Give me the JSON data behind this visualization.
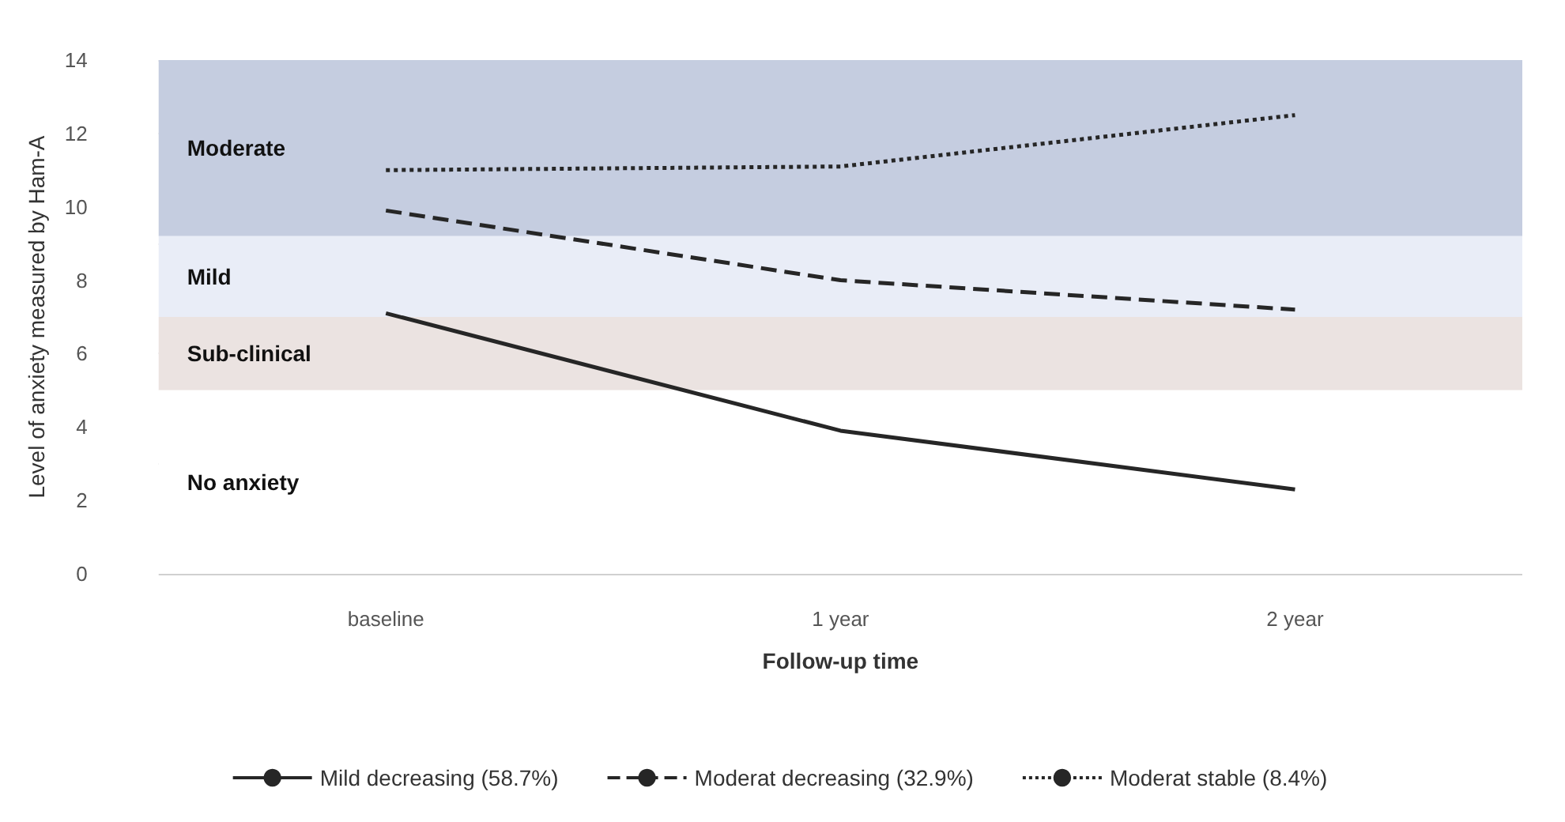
{
  "chart_data": {
    "type": "line",
    "xlabel": "Follow-up time",
    "ylabel": "Level of anxiety measured by Ham-A",
    "categories": [
      "baseline",
      "1 year",
      "2 year"
    ],
    "series": [
      {
        "name": "Mild decreasing (58.7%)",
        "color": "#262626",
        "line_style": "solid",
        "values": [
          7.1,
          3.9,
          2.3
        ]
      },
      {
        "name": "Moderat decreasing (32.9%)",
        "color": "#262626",
        "line_style": "dashed",
        "values": [
          9.9,
          8.0,
          7.2
        ]
      },
      {
        "name": "Moderat stable (8.4%)",
        "color": "#262626",
        "line_style": "dotted",
        "values": [
          11.0,
          11.1,
          12.5
        ]
      }
    ],
    "bands": [
      {
        "axis": "y",
        "from": 9.2,
        "to": 14,
        "label": "Moderate",
        "color": "#c5cde0"
      },
      {
        "axis": "y",
        "from": 7,
        "to": 9.2,
        "label": "Mild",
        "color": "#e9edf7"
      },
      {
        "axis": "y",
        "from": 5,
        "to": 7,
        "label": "Sub-clinical",
        "color": "#ebe3e1"
      },
      {
        "axis": "y",
        "from": 0,
        "to": 5,
        "label": "No anxiety",
        "color": "#ffffff"
      }
    ],
    "ylim": [
      0,
      14
    ],
    "yticks": [
      0,
      2,
      4,
      6,
      8,
      10,
      12,
      14
    ],
    "grid": "y",
    "legend": "bottom",
    "marker": "none"
  }
}
